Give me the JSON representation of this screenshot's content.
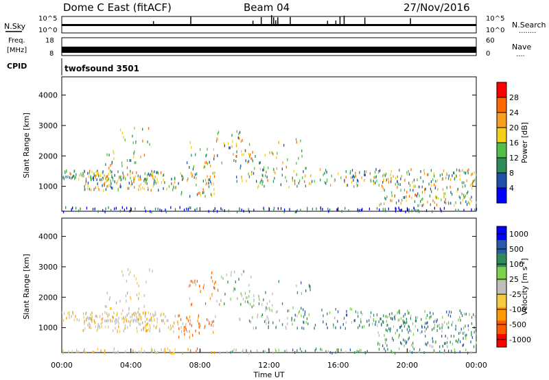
{
  "header": {
    "station": "Dome C East (fitACF)",
    "beam": "Beam 04",
    "date": "27/Nov/2016"
  },
  "panels": {
    "nsky": {
      "label": "N.Sky",
      "tick_top": "10^5",
      "tick_bottom": "10^0"
    },
    "nsearch": {
      "label": "N.Search",
      "dots": "........",
      "tick_top": "10^5",
      "tick_bottom": "10^0"
    },
    "freq": {
      "label_line1": "Freq.",
      "label_line2": "[MHz]",
      "tick_top": "18",
      "tick_bottom": "8"
    },
    "nave": {
      "label": "Nave",
      "dots": "....",
      "tick_top": "60",
      "tick_bottom": "0"
    },
    "cpid": {
      "label": "CPID",
      "value": "twofsound 3501"
    }
  },
  "colors": {
    "power_scale": [
      "#0000ff",
      "#1f4fa8",
      "#2e8b57",
      "#52c048",
      "#f5d01a",
      "#f5a020",
      "#ff6a00",
      "#ff0000"
    ],
    "velocity_scale": [
      "#ff0000",
      "#ff5a00",
      "#ff9a00",
      "#f5cc40",
      "#bebebe",
      "#7fd14b",
      "#2e8b57",
      "#2b5aa8",
      "#0000ff"
    ]
  },
  "chart_data": [
    {
      "type": "heatmap",
      "title": "Power",
      "xlabel": "Time UT",
      "ylabel": "Slant Range [km]",
      "x_ticks": [
        "00:00",
        "04:00",
        "08:00",
        "12:00",
        "16:00",
        "20:00",
        "00:00"
      ],
      "y_ticks": [
        1000,
        2000,
        3000,
        4000
      ],
      "ylim": [
        180,
        4600
      ],
      "colorbar": {
        "label": "Power [dB]",
        "ticks": [
          4,
          8,
          12,
          16,
          20,
          24,
          28
        ],
        "range": [
          0,
          32
        ]
      }
    },
    {
      "type": "heatmap",
      "title": "Velocity",
      "xlabel": "Time UT",
      "ylabel": "Slant Range [km]",
      "x_ticks": [
        "00:00",
        "04:00",
        "08:00",
        "12:00",
        "16:00",
        "20:00",
        "00:00"
      ],
      "y_ticks": [
        1000,
        2000,
        3000,
        4000
      ],
      "ylim": [
        180,
        4600
      ],
      "colorbar": {
        "label": "Velocity [m s^-1]",
        "ticks": [
          "1000",
          "500",
          "100",
          "25",
          "-25",
          "-100",
          "-500",
          "-1000"
        ]
      }
    }
  ]
}
